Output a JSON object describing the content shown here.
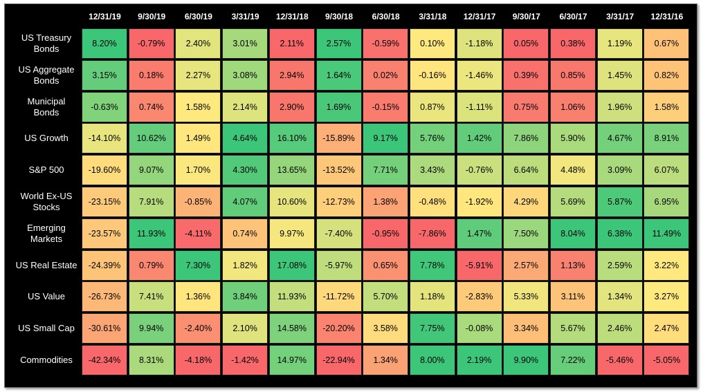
{
  "chart_data": {
    "type": "heatmap",
    "columns": [
      "12/31/19",
      "9/30/19",
      "6/30/19",
      "3/31/19",
      "12/31/18",
      "9/30/18",
      "6/30/18",
      "3/31/18",
      "12/31/17",
      "9/30/17",
      "6/30/17",
      "3/31/17",
      "12/31/16"
    ],
    "rows": [
      {
        "label": "US Treasury Bonds",
        "values": [
          "8.20%",
          "-0.79%",
          "2.40%",
          "3.01%",
          "2.11%",
          "2.57%",
          "-0.59%",
          "0.10%",
          "-1.18%",
          "0.05%",
          "0.38%",
          "1.19%",
          "0.67%"
        ]
      },
      {
        "label": "US Aggregate Bonds",
        "values": [
          "3.15%",
          "0.18%",
          "2.27%",
          "3.08%",
          "2.94%",
          "1.64%",
          "0.02%",
          "-0.16%",
          "-1.46%",
          "0.39%",
          "0.85%",
          "1.45%",
          "0.82%"
        ]
      },
      {
        "label": "Municipal Bonds",
        "values": [
          "-0.63%",
          "0.74%",
          "1.58%",
          "2.14%",
          "2.90%",
          "1.69%",
          "-0.15%",
          "0.87%",
          "-1.11%",
          "0.75%",
          "1.06%",
          "1.96%",
          "1.58%"
        ]
      },
      {
        "label": "US Growth",
        "values": [
          "-14.10%",
          "10.62%",
          "1.49%",
          "4.64%",
          "16.10%",
          "-15.89%",
          "9.17%",
          "5.76%",
          "1.42%",
          "7.86%",
          "5.90%",
          "4.67%",
          "8.91%"
        ]
      },
      {
        "label": "S&P 500",
        "values": [
          "-19.60%",
          "9.07%",
          "1.70%",
          "4.30%",
          "13.65%",
          "-13.52%",
          "7.71%",
          "3.43%",
          "-0.76%",
          "6.64%",
          "4.48%",
          "3.09%",
          "6.07%"
        ]
      },
      {
        "label": "World Ex-US Stocks",
        "values": [
          "-23.15%",
          "7.91%",
          "-0.85%",
          "4.07%",
          "10.60%",
          "-12.73%",
          "1.38%",
          "-0.48%",
          "-1.92%",
          "4.29%",
          "5.69%",
          "5.87%",
          "6.95%"
        ]
      },
      {
        "label": "Emerging Markets",
        "values": [
          "-23.57%",
          "11.93%",
          "-4.11%",
          "0.74%",
          "9.97%",
          "-7.40%",
          "-0.95%",
          "-7.86%",
          "1.47%",
          "7.50%",
          "8.04%",
          "6.38%",
          "11.49%"
        ]
      },
      {
        "label": "US Real Estate",
        "values": [
          "-24.39%",
          "0.79%",
          "7.30%",
          "1.82%",
          "17.08%",
          "-5.97%",
          "0.65%",
          "7.78%",
          "-5.91%",
          "2.57%",
          "1.13%",
          "2.59%",
          "3.22%"
        ]
      },
      {
        "label": "US Value",
        "values": [
          "-26.73%",
          "7.41%",
          "1.36%",
          "3.84%",
          "11.93%",
          "-11.72%",
          "5.70%",
          "1.18%",
          "-2.83%",
          "5.33%",
          "3.11%",
          "1.34%",
          "3.27%"
        ]
      },
      {
        "label": "US Small Cap",
        "values": [
          "-30.61%",
          "9.94%",
          "-2.40%",
          "2.10%",
          "14.58%",
          "-20.20%",
          "3.58%",
          "7.75%",
          "-0.08%",
          "3.34%",
          "5.67%",
          "2.46%",
          "2.47%"
        ]
      },
      {
        "label": "Commodities",
        "values": [
          "-42.34%",
          "8.31%",
          "-4.18%",
          "-1.42%",
          "14.97%",
          "-22.94%",
          "1.34%",
          "8.00%",
          "2.19%",
          "9.90%",
          "7.22%",
          "-5.46%",
          "-5.05%"
        ]
      }
    ],
    "colors": {
      "high": "#3cc67a",
      "mid": "#ffe97e",
      "low": "#f8686b",
      "background": "#000000"
    }
  }
}
